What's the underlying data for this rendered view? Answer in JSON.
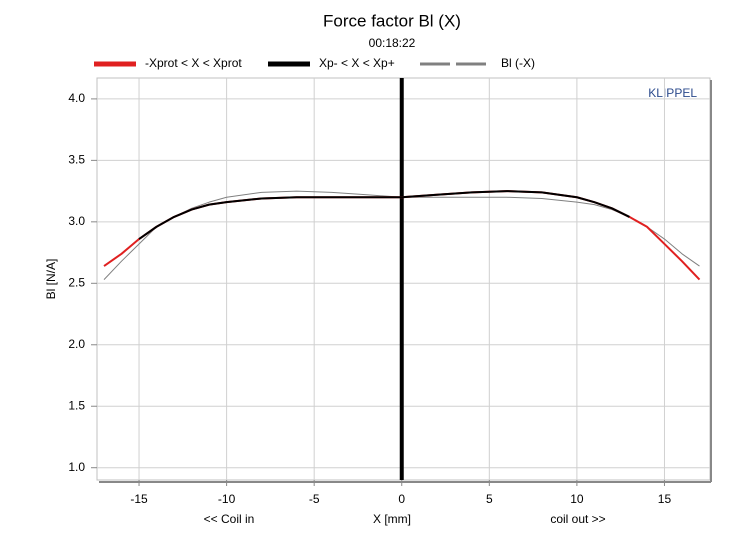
{
  "chart_data": {
    "type": "line",
    "title": "Force factor Bl (X)",
    "subtitle": "00:18:22",
    "x_label": "X [mm]",
    "y_label": "Bl [N/A]",
    "annotations": [
      "<< Coil in",
      "coil out >>",
      "KLIPPEL"
    ],
    "x": [
      -17,
      -16,
      -15,
      -14,
      -13,
      -12,
      -11,
      -10,
      -8,
      -6,
      -4,
      -2,
      0,
      2,
      4,
      6,
      8,
      10,
      11,
      12,
      13,
      14,
      15,
      16,
      17
    ],
    "series": [
      {
        "name": "-Xprot < X < Xprot",
        "color": "#e02020",
        "width": 2,
        "values": [
          2.64,
          2.74,
          2.86,
          2.96,
          3.04,
          3.1,
          3.14,
          3.16,
          3.19,
          3.2,
          3.2,
          3.2,
          3.2,
          3.22,
          3.24,
          3.25,
          3.24,
          3.2,
          3.16,
          3.11,
          3.04,
          2.96,
          2.82,
          2.68,
          2.53
        ]
      },
      {
        "name": "Xp- < X < Xp+",
        "color": "#000000",
        "width": 2,
        "values": [
          null,
          null,
          2.86,
          2.96,
          3.04,
          3.1,
          3.14,
          3.16,
          3.19,
          3.2,
          3.2,
          3.2,
          3.2,
          3.22,
          3.24,
          3.25,
          3.24,
          3.2,
          3.16,
          3.11,
          3.04,
          null,
          null,
          null,
          null
        ]
      },
      {
        "name": "Bl (-X)",
        "color": "#808080",
        "width": 1,
        "values": [
          2.53,
          2.68,
          2.82,
          2.96,
          3.04,
          3.11,
          3.16,
          3.2,
          3.24,
          3.25,
          3.24,
          3.22,
          3.2,
          3.2,
          3.2,
          3.2,
          3.19,
          3.16,
          3.14,
          3.1,
          3.04,
          2.96,
          2.86,
          2.74,
          2.64
        ]
      }
    ],
    "xlim": [
      -17.4,
      17.6
    ],
    "ylim": [
      0.9,
      4.17
    ],
    "xticks": [
      -15,
      -10,
      -5,
      0,
      5,
      10,
      15
    ],
    "yticks": [
      {
        "value": 1,
        "label": "1.0"
      },
      {
        "value": 1.5,
        "label": "1.5"
      },
      {
        "value": 2,
        "label": "2.0"
      },
      {
        "value": 2.5,
        "label": "2.5"
      },
      {
        "value": 3,
        "label": "3.0"
      },
      {
        "value": 3.5,
        "label": "3.5"
      },
      {
        "value": 4,
        "label": "4.0"
      }
    ],
    "grid": true
  }
}
